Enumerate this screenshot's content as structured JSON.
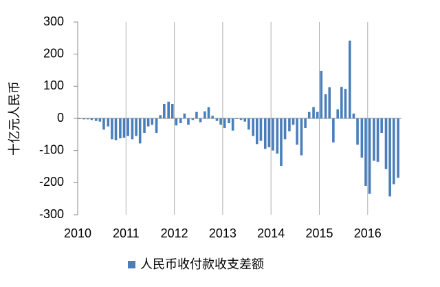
{
  "chart_data": {
    "type": "bar",
    "y_label": "十亿元人民币",
    "x": [
      2010.04,
      2010.13,
      2010.21,
      2010.29,
      2010.38,
      2010.46,
      2010.54,
      2010.63,
      2010.71,
      2010.79,
      2010.88,
      2010.96,
      2011.04,
      2011.13,
      2011.21,
      2011.29,
      2011.38,
      2011.46,
      2011.54,
      2011.63,
      2011.71,
      2011.79,
      2011.88,
      2011.96,
      2012.04,
      2012.13,
      2012.21,
      2012.29,
      2012.38,
      2012.46,
      2012.54,
      2012.63,
      2012.71,
      2012.79,
      2012.88,
      2012.96,
      2013.04,
      2013.13,
      2013.21,
      2013.29,
      2013.38,
      2013.46,
      2013.54,
      2013.63,
      2013.71,
      2013.79,
      2013.88,
      2013.96,
      2014.04,
      2014.13,
      2014.21,
      2014.29,
      2014.38,
      2014.46,
      2014.54,
      2014.63,
      2014.71,
      2014.79,
      2014.88,
      2014.96,
      2015.04,
      2015.13,
      2015.21,
      2015.29,
      2015.38,
      2015.46,
      2015.54,
      2015.63,
      2015.71,
      2015.79,
      2015.88,
      2015.96,
      2016.04,
      2016.13,
      2016.21,
      2016.29,
      2016.38,
      2016.46,
      2016.54,
      2016.63
    ],
    "series": [
      {
        "name": "人民币收付款收支差额",
        "color": "#4a7ebb",
        "values": [
          -2,
          -3,
          -3,
          -5,
          -8,
          -10,
          -35,
          -25,
          -65,
          -68,
          -62,
          -60,
          -55,
          -65,
          -55,
          -78,
          -45,
          -25,
          -20,
          -45,
          10,
          45,
          52,
          45,
          -22,
          -15,
          15,
          -20,
          -5,
          20,
          -12,
          22,
          35,
          8,
          -8,
          -20,
          -30,
          -15,
          -38,
          -2,
          -5,
          -10,
          -35,
          -55,
          -80,
          -70,
          -95,
          -90,
          -100,
          -110,
          -148,
          -65,
          -40,
          -20,
          -82,
          -115,
          -30,
          20,
          35,
          20,
          148,
          75,
          97,
          -75,
          28,
          98,
          92,
          242,
          15,
          -82,
          -122,
          -210,
          -235,
          -132,
          -135,
          -45,
          -158,
          -243,
          -205,
          -185
        ]
      }
    ],
    "xlim": [
      2010,
      2016.7
    ],
    "xticks": [
      2010,
      2011,
      2012,
      2013,
      2014,
      2015,
      2016
    ],
    "ylim": [
      -300,
      300
    ],
    "yticks": [
      -300,
      -200,
      -100,
      0,
      100,
      200,
      300
    ],
    "grid": true
  }
}
